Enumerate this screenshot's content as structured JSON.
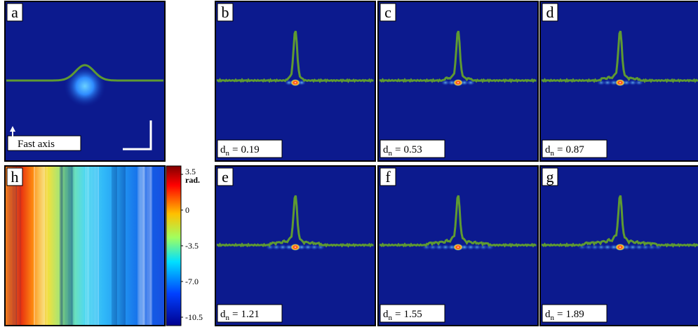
{
  "panels": [
    {
      "label": "a",
      "annotation": "Fast axis"
    },
    {
      "label": "b",
      "dn": 0.19
    },
    {
      "label": "c",
      "dn": 0.53
    },
    {
      "label": "d",
      "dn": 0.87
    },
    {
      "label": "e",
      "dn": 1.21
    },
    {
      "label": "f",
      "dn": 1.55
    },
    {
      "label": "g",
      "dn": 1.89
    }
  ],
  "phase_map": {
    "label": "h"
  },
  "parameter": {
    "symbol": "d",
    "subscript": "n",
    "relation": "="
  },
  "colorbar": {
    "unit": "rad.",
    "lim": [
      -10.5,
      3.5
    ],
    "ticks": [
      3.5,
      0,
      -3.5,
      {
        "value": -7,
        "label": "-7.0"
      },
      -10.5
    ]
  }
}
